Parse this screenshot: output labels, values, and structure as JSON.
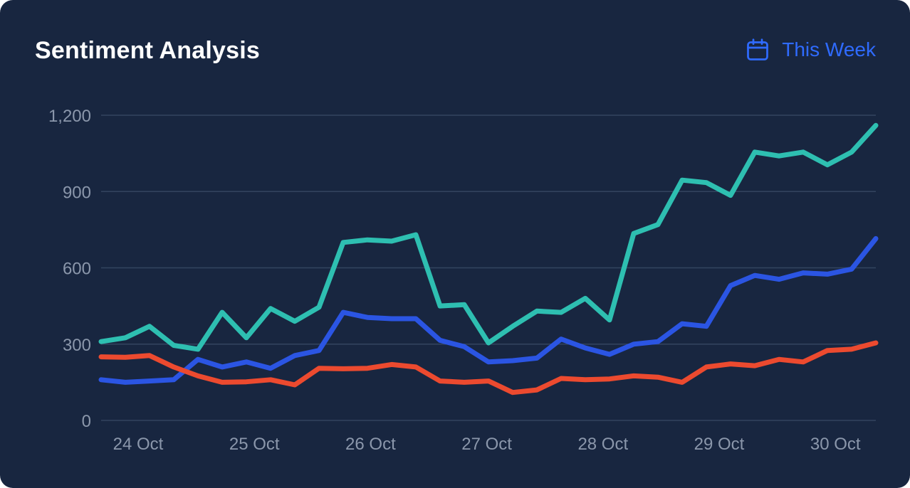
{
  "header": {
    "title": "Sentiment Analysis",
    "range_label": "This Week",
    "range_icon": "calendar-icon"
  },
  "colors": {
    "background": "#182640",
    "grid": "#33445f",
    "tick_text": "#8b97ab",
    "accent": "#2f6bff"
  },
  "chart_data": {
    "type": "line",
    "title": "Sentiment Analysis",
    "xlabel": "",
    "ylabel": "",
    "ylim": [
      0,
      1200
    ],
    "yticks": [
      0,
      300,
      600,
      900,
      1200
    ],
    "ytick_labels": [
      "0",
      "300",
      "600",
      "900",
      "1,200"
    ],
    "xtick_labels": [
      "24 Oct",
      "25 Oct",
      "26 Oct",
      "27 Oct",
      "28 Oct",
      "29 Oct",
      "30 Oct"
    ],
    "grid": true,
    "legend": "none",
    "x": [
      "2024-10-24 00:00",
      "2024-10-24 05:00",
      "2024-10-24 10:00",
      "2024-10-24 15:00",
      "2024-10-24 20:00",
      "2024-10-25 01:00",
      "2024-10-25 06:00",
      "2024-10-25 11:00",
      "2024-10-25 16:00",
      "2024-10-25 21:00",
      "2024-10-26 02:00",
      "2024-10-26 07:00",
      "2024-10-26 12:00",
      "2024-10-26 17:00",
      "2024-10-26 22:00",
      "2024-10-27 03:00",
      "2024-10-27 08:00",
      "2024-10-27 13:00",
      "2024-10-27 18:00",
      "2024-10-27 23:00",
      "2024-10-28 04:00",
      "2024-10-28 09:00",
      "2024-10-28 14:00",
      "2024-10-28 19:00",
      "2024-10-29 00:00",
      "2024-10-29 05:00",
      "2024-10-29 10:00",
      "2024-10-29 15:00",
      "2024-10-29 20:00",
      "2024-10-30 01:00",
      "2024-10-30 06:00",
      "2024-10-30 11:00",
      "2024-10-30 16:00"
    ],
    "series": [
      {
        "color": "#2ebfb1",
        "values": [
          310,
          325,
          370,
          295,
          280,
          425,
          325,
          440,
          390,
          445,
          700,
          710,
          705,
          730,
          450,
          455,
          305,
          370,
          430,
          425,
          480,
          395,
          735,
          770,
          945,
          935,
          885,
          1055,
          1040,
          1055,
          1005,
          1055,
          1160
        ]
      },
      {
        "color": "#2b55e3",
        "values": [
          160,
          150,
          155,
          160,
          240,
          210,
          230,
          205,
          255,
          275,
          425,
          405,
          400,
          400,
          315,
          290,
          230,
          235,
          245,
          320,
          285,
          260,
          300,
          310,
          380,
          370,
          530,
          570,
          555,
          580,
          575,
          595,
          715
        ]
      },
      {
        "color": "#ec4a2f",
        "values": [
          250,
          248,
          255,
          210,
          175,
          150,
          152,
          160,
          140,
          205,
          203,
          205,
          220,
          210,
          155,
          150,
          155,
          110,
          120,
          165,
          160,
          163,
          175,
          170,
          150,
          210,
          222,
          215,
          240,
          230,
          275,
          280,
          305
        ]
      }
    ]
  }
}
